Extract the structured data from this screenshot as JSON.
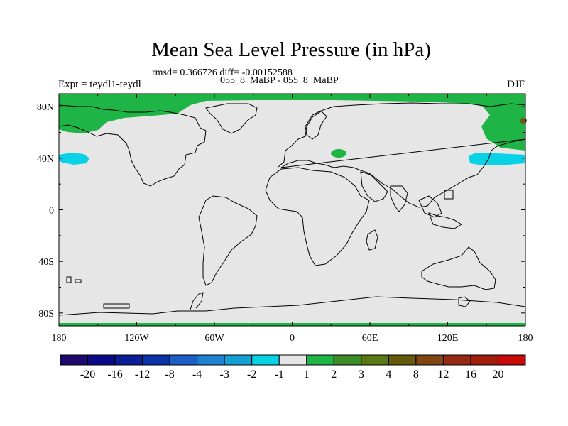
{
  "title": "Mean Sea Level Pressure (in hPa)",
  "stats_line": "rmsd= 0.366726 diff= -0.00152588",
  "subtitle": "055_8_MaBP - 055_8_MaBP",
  "experiment": "Expt = teydl1-teydl",
  "season": "DJF",
  "chart_data": {
    "type": "heatmap",
    "projection": "cylindrical-equidistant",
    "variable": "Mean Sea Level Pressure difference",
    "units": "hPa",
    "x_ticks": [
      "180",
      "120W",
      "60W",
      "0",
      "60E",
      "120E",
      "180"
    ],
    "y_ticks": [
      "80N",
      "40N",
      "0",
      "40S",
      "80S"
    ],
    "colorbar": {
      "labels": [
        "-20",
        "-16",
        "-12",
        "-8",
        "-4",
        "-3",
        "-2",
        "-1",
        "1",
        "2",
        "3",
        "4",
        "8",
        "12",
        "16",
        "20"
      ],
      "colors": [
        "#1e0a6e",
        "#0b0b8a",
        "#0a1e99",
        "#0a32a8",
        "#1e5ec8",
        "#1e82d2",
        "#14a0d2",
        "#0ad2e6",
        "#e6e6e6",
        "#1eb446",
        "#3c8c28",
        "#5a7814",
        "#645a0a",
        "#824614",
        "#962814",
        "#a01e0a",
        "#c80a0a"
      ]
    },
    "highlights": [
      {
        "region": "Arctic / high northern latitudes",
        "class": "1 to 2"
      },
      {
        "region": "North Pacific near 40N",
        "class": "-2 to -1"
      },
      {
        "region": "Black Sea / Caspian area",
        "class": "1 to 2"
      }
    ]
  }
}
